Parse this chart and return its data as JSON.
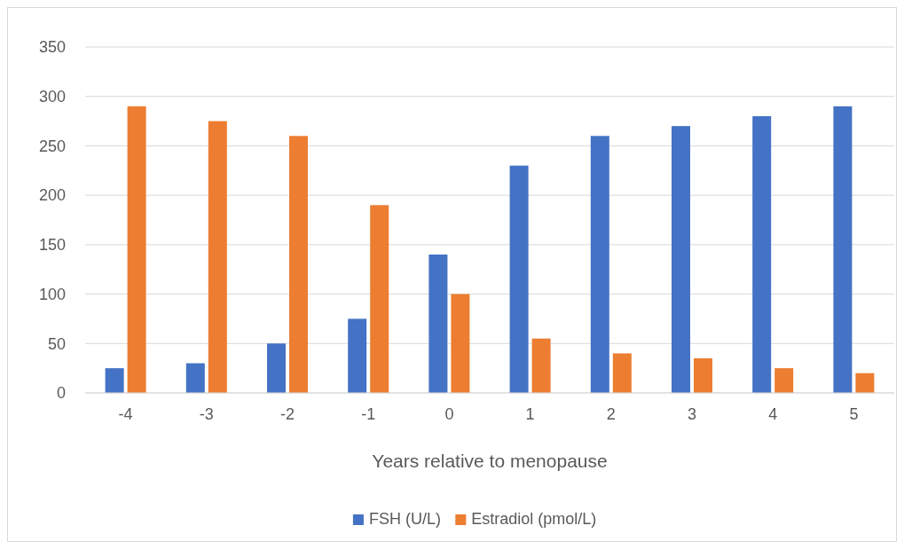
{
  "chart_data": {
    "type": "bar",
    "xlabel": "Years relative to menopause",
    "categories": [
      "-4",
      "-3",
      "-2",
      "-1",
      "0",
      "1",
      "2",
      "3",
      "4",
      "5"
    ],
    "series": [
      {
        "name": "FSH (U/L)",
        "color": "#4472c4",
        "values": [
          25,
          30,
          50,
          75,
          140,
          230,
          260,
          270,
          280,
          290
        ]
      },
      {
        "name": "Estradiol (pmol/L)",
        "color": "#ed7d31",
        "values": [
          290,
          275,
          260,
          190,
          100,
          55,
          40,
          35,
          25,
          20
        ]
      }
    ],
    "ylim": [
      0,
      350
    ],
    "yticks": [
      0,
      50,
      100,
      150,
      200,
      250,
      300,
      350
    ],
    "grid": "y",
    "legend": "bottom"
  }
}
